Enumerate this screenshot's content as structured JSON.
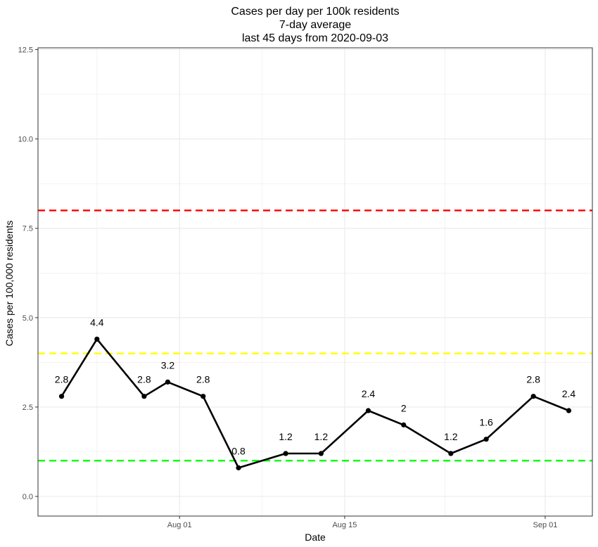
{
  "chart_data": {
    "type": "line",
    "title_lines": [
      "Cases per day per 100k residents",
      "7-day average",
      "last 45 days from 2020-09-03"
    ],
    "xlabel": "Date",
    "ylabel": "Cases per 100,000 residents",
    "x_tick_labels": [
      {
        "date": "2020-08-01",
        "label": "Aug 01"
      },
      {
        "date": "2020-08-15",
        "label": "Aug 15"
      },
      {
        "date": "2020-09-01",
        "label": "Sep 01"
      }
    ],
    "y_ticks": [
      0.0,
      2.5,
      5.0,
      7.5,
      10.0,
      12.5
    ],
    "y_tick_labels": [
      "0.0",
      "2.5",
      "5.0",
      "7.5",
      "10.0",
      "12.5"
    ],
    "ylim": [
      -0.55,
      12.55
    ],
    "xlim": [
      "2020-07-20",
      "2020-09-05"
    ],
    "series": [
      {
        "color": "#000000",
        "points": [
          {
            "date": "2020-07-22",
            "value": 2.8,
            "label": "2.8"
          },
          {
            "date": "2020-07-25",
            "value": 4.4,
            "label": "4.4"
          },
          {
            "date": "2020-07-29",
            "value": 2.8,
            "label": "2.8"
          },
          {
            "date": "2020-07-31",
            "value": 3.2,
            "label": "3.2"
          },
          {
            "date": "2020-08-03",
            "value": 2.8,
            "label": "2.8"
          },
          {
            "date": "2020-08-06",
            "value": 0.8,
            "label": "0.8"
          },
          {
            "date": "2020-08-10",
            "value": 1.2,
            "label": "1.2"
          },
          {
            "date": "2020-08-13",
            "value": 1.2,
            "label": "1.2"
          },
          {
            "date": "2020-08-17",
            "value": 2.4,
            "label": "2.4"
          },
          {
            "date": "2020-08-20",
            "value": 2.0,
            "label": "2"
          },
          {
            "date": "2020-08-24",
            "value": 1.2,
            "label": "1.2"
          },
          {
            "date": "2020-08-27",
            "value": 1.6,
            "label": "1.6"
          },
          {
            "date": "2020-08-31",
            "value": 2.8,
            "label": "2.8"
          },
          {
            "date": "2020-09-03",
            "value": 2.4,
            "label": "2.4"
          }
        ]
      }
    ],
    "reference_lines": [
      {
        "value": 8,
        "color": "#ff0000"
      },
      {
        "value": 4,
        "color": "#ffff00"
      },
      {
        "value": 1,
        "color": "#00ff00"
      }
    ],
    "grid": true,
    "panel_border_color": "#333333",
    "grid_color": "#ebebeb"
  }
}
